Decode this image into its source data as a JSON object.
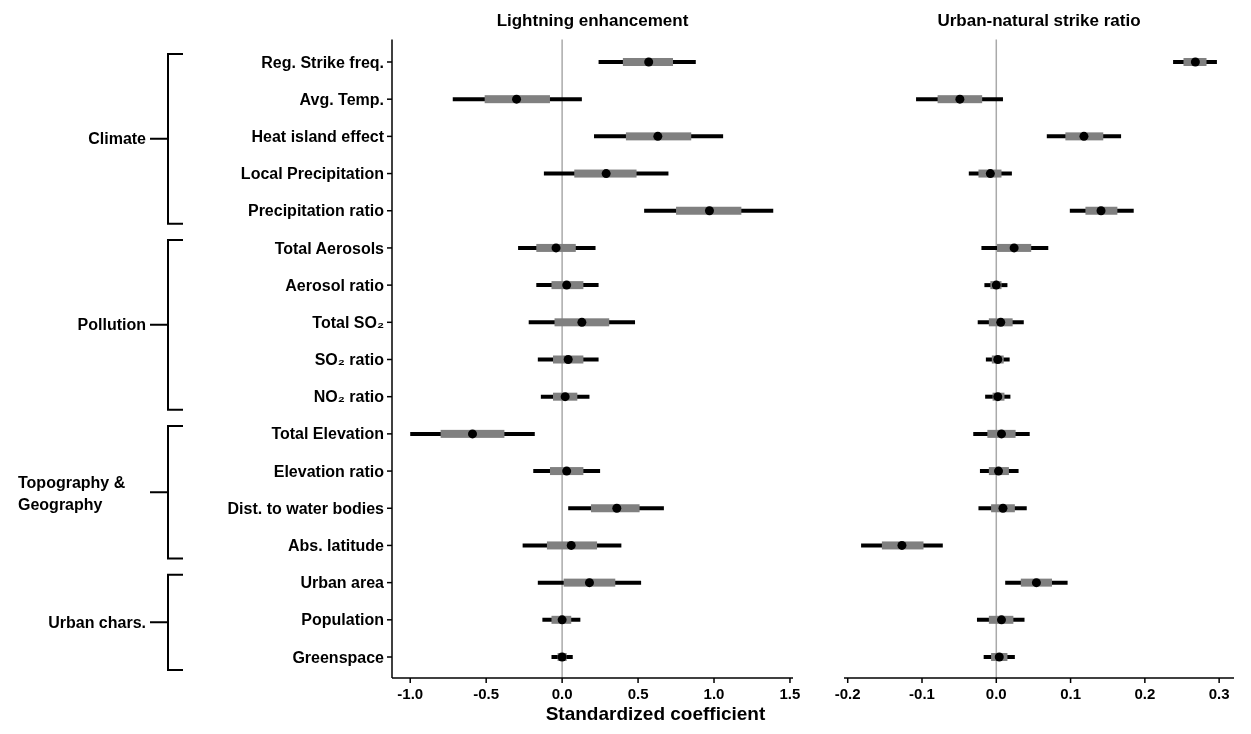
{
  "chart_data": [
    {
      "type": "box",
      "orientation": "horizontal",
      "title": "Lightning enhancement",
      "xlabel": "Standardized coefficient",
      "categories": [
        "Reg. Strike freq.",
        "Avg. Temp.",
        "Heat island effect",
        "Local Precipitation",
        "Precipitation ratio",
        "Total Aerosols",
        "Aerosol ratio",
        "Total SO₂",
        "SO₂ ratio",
        "NO₂ ratio",
        "Total Elevation",
        "Elevation ratio",
        "Dist. to water bodies",
        "Abs. latitude",
        "Urban area",
        "Population",
        "Greenspace"
      ],
      "xlim": [
        -1.12,
        1.52
      ],
      "xticks": [
        {
          "value": -1,
          "label": "-1.0"
        },
        {
          "value": -0.5,
          "label": "-0.5"
        },
        {
          "value": 0,
          "label": "0.0"
        },
        {
          "value": 0.5,
          "label": "0.5"
        },
        {
          "value": 1,
          "label": "1.0"
        },
        {
          "value": 1.5,
          "label": "1.5"
        }
      ],
      "ref_lines": [
        {
          "axis": "x",
          "value": 0,
          "color": "#aaaaaa"
        }
      ],
      "annotations": [
        "Climate",
        "Pollution",
        "Topography & Geography",
        "Urban chars."
      ],
      "series": [
        {
          "color": "#808080",
          "boxes": [
            {
              "low": 0.24,
              "q1": 0.4,
              "median": 0.57,
              "q3": 0.73,
              "high": 0.88
            },
            {
              "low": -0.72,
              "q1": -0.51,
              "median": -0.3,
              "q3": -0.08,
              "high": 0.13
            },
            {
              "low": 0.21,
              "q1": 0.42,
              "median": 0.63,
              "q3": 0.85,
              "high": 1.06
            },
            {
              "low": -0.12,
              "q1": 0.08,
              "median": 0.29,
              "q3": 0.49,
              "high": 0.7
            },
            {
              "low": 0.54,
              "q1": 0.75,
              "median": 0.97,
              "q3": 1.18,
              "high": 1.39
            },
            {
              "low": -0.29,
              "q1": -0.17,
              "median": -0.04,
              "q3": 0.09,
              "high": 0.22
            },
            {
              "low": -0.17,
              "q1": -0.07,
              "median": 0.03,
              "q3": 0.14,
              "high": 0.24
            },
            {
              "low": -0.22,
              "q1": -0.05,
              "median": 0.13,
              "q3": 0.31,
              "high": 0.48
            },
            {
              "low": -0.16,
              "q1": -0.06,
              "median": 0.04,
              "q3": 0.14,
              "high": 0.24
            },
            {
              "low": -0.14,
              "q1": -0.06,
              "median": 0.02,
              "q3": 0.1,
              "high": 0.18
            },
            {
              "low": -1.0,
              "q1": -0.8,
              "median": -0.59,
              "q3": -0.38,
              "high": -0.18
            },
            {
              "low": -0.19,
              "q1": -0.08,
              "median": 0.03,
              "q3": 0.14,
              "high": 0.25
            },
            {
              "low": 0.04,
              "q1": 0.19,
              "median": 0.36,
              "q3": 0.51,
              "high": 0.67
            },
            {
              "low": -0.26,
              "q1": -0.1,
              "median": 0.06,
              "q3": 0.23,
              "high": 0.39
            },
            {
              "low": -0.16,
              "q1": 0.01,
              "median": 0.18,
              "q3": 0.35,
              "high": 0.52
            },
            {
              "low": -0.13,
              "q1": -0.07,
              "median": 0.0,
              "q3": 0.06,
              "high": 0.12
            },
            {
              "low": -0.07,
              "q1": -0.03,
              "median": 0.0,
              "q3": 0.03,
              "high": 0.07
            }
          ]
        }
      ]
    },
    {
      "type": "box",
      "orientation": "horizontal",
      "title": "Urban-natural strike ratio",
      "tick_labels": "x",
      "categories": [
        null,
        null,
        null,
        null,
        null,
        null,
        null,
        null,
        null,
        null,
        null,
        null,
        null,
        null,
        null,
        null,
        null
      ],
      "xlim": [
        -0.205,
        0.32
      ],
      "xticks": [
        {
          "value": -0.2,
          "label": "-0.2"
        },
        {
          "value": -0.1,
          "label": "-0.1"
        },
        {
          "value": 0,
          "label": "0.0"
        },
        {
          "value": 0.1,
          "label": "0.1"
        },
        {
          "value": 0.2,
          "label": "0.2"
        },
        {
          "value": 0.3,
          "label": "0.3"
        }
      ],
      "ref_lines": [
        {
          "axis": "x",
          "value": 0,
          "color": "#aaaaaa"
        }
      ],
      "series": [
        {
          "color": "#808080",
          "boxes": [
            {
              "low": 0.238,
              "q1": 0.252,
              "median": 0.268,
              "q3": 0.283,
              "high": 0.297
            },
            {
              "low": -0.108,
              "q1": -0.079,
              "median": -0.049,
              "q3": -0.019,
              "high": 0.009
            },
            {
              "low": 0.068,
              "q1": 0.093,
              "median": 0.118,
              "q3": 0.144,
              "high": 0.168
            },
            {
              "low": -0.037,
              "q1": -0.024,
              "median": -0.008,
              "q3": 0.007,
              "high": 0.021
            },
            {
              "low": 0.099,
              "q1": 0.12,
              "median": 0.141,
              "q3": 0.163,
              "high": 0.185
            },
            {
              "low": -0.02,
              "q1": 0.001,
              "median": 0.024,
              "q3": 0.047,
              "high": 0.07
            },
            {
              "low": -0.016,
              "q1": -0.008,
              "median": 0.0,
              "q3": 0.007,
              "high": 0.015
            },
            {
              "low": -0.025,
              "q1": -0.01,
              "median": 0.006,
              "q3": 0.022,
              "high": 0.037
            },
            {
              "low": -0.014,
              "q1": -0.006,
              "median": 0.002,
              "q3": 0.01,
              "high": 0.018
            },
            {
              "low": -0.015,
              "q1": -0.005,
              "median": 0.002,
              "q3": 0.011,
              "high": 0.019
            },
            {
              "low": -0.031,
              "q1": -0.012,
              "median": 0.007,
              "q3": 0.026,
              "high": 0.045
            },
            {
              "low": -0.022,
              "q1": -0.01,
              "median": 0.003,
              "q3": 0.017,
              "high": 0.03
            },
            {
              "low": -0.024,
              "q1": -0.007,
              "median": 0.009,
              "q3": 0.025,
              "high": 0.041
            },
            {
              "low": -0.182,
              "q1": -0.154,
              "median": -0.127,
              "q3": -0.098,
              "high": -0.072
            },
            {
              "low": 0.012,
              "q1": 0.033,
              "median": 0.054,
              "q3": 0.075,
              "high": 0.096
            },
            {
              "low": -0.026,
              "q1": -0.01,
              "median": 0.007,
              "q3": 0.023,
              "high": 0.038
            },
            {
              "low": -0.017,
              "q1": -0.007,
              "median": 0.004,
              "q3": 0.015,
              "high": 0.025
            }
          ]
        }
      ]
    }
  ]
}
